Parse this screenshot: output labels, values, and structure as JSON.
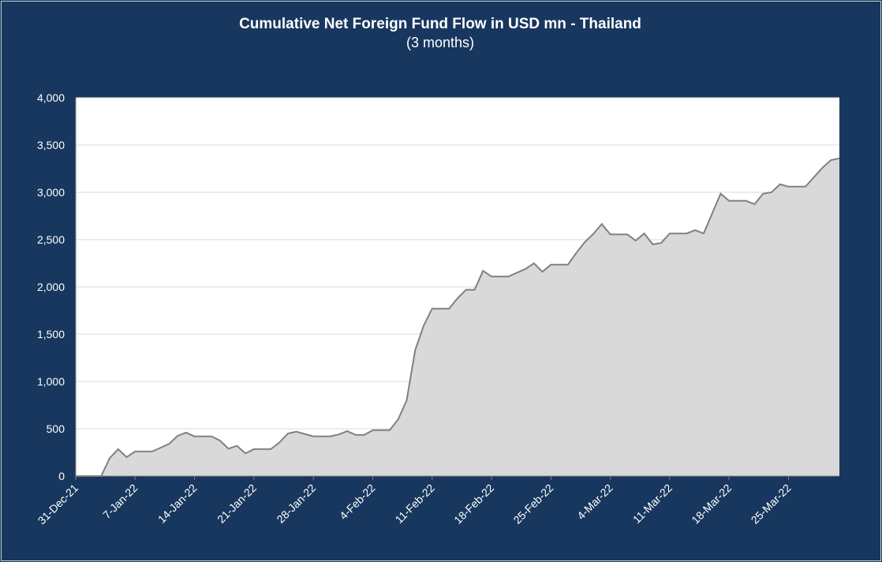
{
  "chart_data": {
    "type": "area",
    "title": "Cumulative Net Foreign Fund Flow in USD mn -  Thailand",
    "subtitle": "(3 months)",
    "categories": [
      "31-Dec-21",
      null,
      null,
      null,
      null,
      null,
      null,
      "7-Jan-22",
      null,
      null,
      null,
      null,
      null,
      null,
      "14-Jan-22",
      null,
      null,
      null,
      null,
      null,
      null,
      "21-Jan-22",
      null,
      null,
      null,
      null,
      null,
      null,
      "28-Jan-22",
      null,
      null,
      null,
      null,
      null,
      null,
      "4-Feb-22",
      null,
      null,
      null,
      null,
      null,
      null,
      "11-Feb-22",
      null,
      null,
      null,
      null,
      null,
      null,
      "18-Feb-22",
      null,
      null,
      null,
      null,
      null,
      null,
      "25-Feb-22",
      null,
      null,
      null,
      null,
      null,
      null,
      "4-Mar-22",
      null,
      null,
      null,
      null,
      null,
      null,
      "11-Mar-22",
      null,
      null,
      null,
      null,
      null,
      null,
      "18-Mar-22",
      null,
      null,
      null,
      null,
      null,
      null,
      "25-Mar-22",
      null,
      null,
      null,
      null,
      null,
      null
    ],
    "series": [
      {
        "name": "Cumulative Net Foreign Fund Flow",
        "color": "#808080",
        "fill": "#d9d9d9",
        "values": [
          0,
          0,
          0,
          0,
          190,
          285,
          200,
          260,
          260,
          260,
          300,
          340,
          425,
          460,
          420,
          420,
          420,
          375,
          290,
          320,
          240,
          285,
          285,
          285,
          355,
          450,
          470,
          445,
          420,
          420,
          420,
          440,
          475,
          435,
          435,
          485,
          485,
          485,
          600,
          800,
          1330,
          1590,
          1770,
          1770,
          1770,
          1880,
          1970,
          1970,
          2170,
          2110,
          2110,
          2110,
          2150,
          2190,
          2250,
          2160,
          2235,
          2235,
          2235,
          2360,
          2475,
          2560,
          2665,
          2555,
          2555,
          2555,
          2490,
          2565,
          2450,
          2465,
          2565,
          2565,
          2565,
          2600,
          2565,
          2775,
          2985,
          2910,
          2910,
          2910,
          2875,
          2985,
          3000,
          3085,
          3060,
          3060,
          3060,
          3160,
          3260,
          3340,
          3360
        ]
      }
    ],
    "ylim": [
      0,
      4000
    ],
    "yticks": [
      0,
      500,
      {
        "value": 1000,
        "label": "1,000"
      },
      {
        "value": 1500,
        "label": "1,500"
      },
      {
        "value": 2000,
        "label": "2,000"
      },
      {
        "value": 2500,
        "label": "2,500"
      },
      {
        "value": 3000,
        "label": "3,000"
      },
      {
        "value": 3500,
        "label": "3,500"
      },
      {
        "value": 4000,
        "label": "4,000"
      }
    ],
    "grid": true
  }
}
